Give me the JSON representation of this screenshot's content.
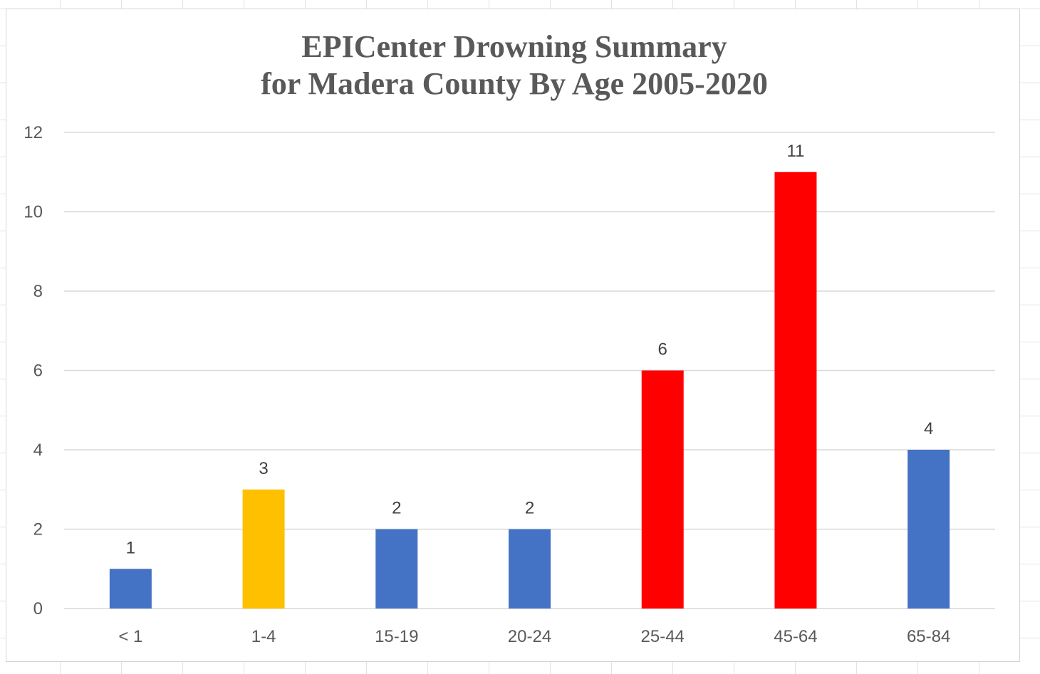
{
  "chart_data": {
    "type": "bar",
    "title_lines": [
      "EPICenter Drowning Summary",
      "for Madera County By Age 2005-2020"
    ],
    "categories": [
      "< 1",
      "1-4",
      "15-19",
      "20-24",
      "25-44",
      "45-64",
      "65-84"
    ],
    "values": [
      1,
      3,
      2,
      2,
      6,
      11,
      4
    ],
    "bar_colors": [
      "#4472C4",
      "#FFC000",
      "#4472C4",
      "#4472C4",
      "#FF0000",
      "#FF0000",
      "#4472C4"
    ],
    "data_labels": [
      "1",
      "3",
      "2",
      "2",
      "6",
      "11",
      "4"
    ],
    "xlabel": "",
    "ylabel": "",
    "ylim": [
      0,
      12
    ],
    "yticks": [
      0,
      2,
      4,
      6,
      8,
      10,
      12
    ],
    "grid": true,
    "legend": "none"
  },
  "colors": {
    "gridline": "#D9D9D9",
    "axis_text": "#595959",
    "title_text": "#595959"
  }
}
